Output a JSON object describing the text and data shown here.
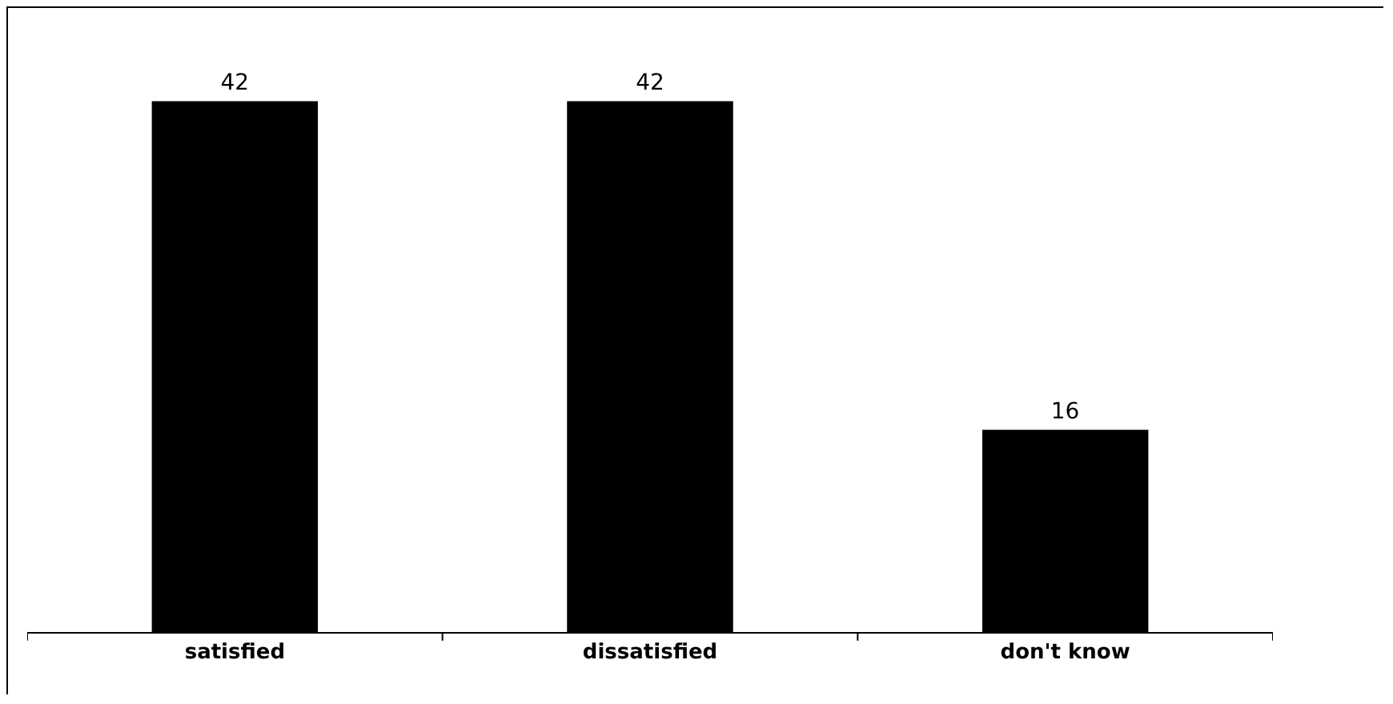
{
  "chart_data": {
    "type": "bar",
    "categories": [
      "satisfied",
      "dissatisfied",
      "don't know"
    ],
    "values": [
      42,
      42,
      16
    ],
    "color": "#000000",
    "data_labels": true,
    "grid": false,
    "legend": false
  }
}
